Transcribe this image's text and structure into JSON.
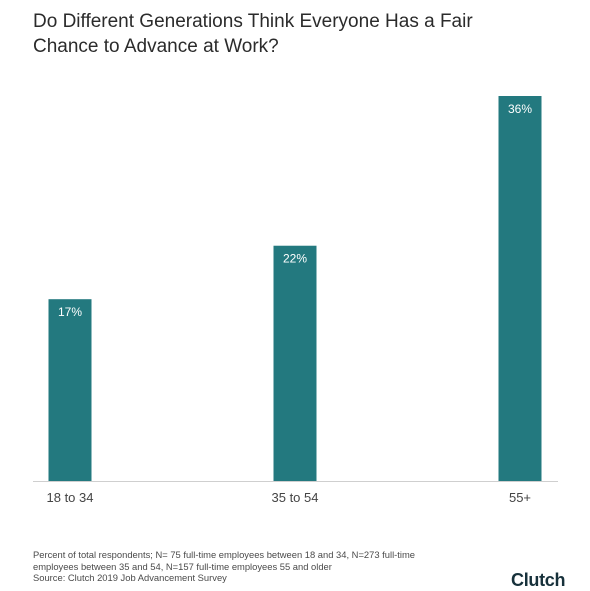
{
  "title_lines": [
    "Do Different Generations Think Everyone Has a Fair",
    "Chance to Advance at Work?"
  ],
  "chart_data": {
    "type": "bar",
    "categories": [
      "18 to 34",
      "35 to 54",
      "55+"
    ],
    "values": [
      17,
      22,
      36
    ],
    "value_labels": [
      "17%",
      "22%",
      "36%"
    ],
    "title": "Do Different Generations Think Everyone Has a Fair Chance to Advance at Work?",
    "xlabel": "",
    "ylabel": "",
    "ylim": [
      0,
      36
    ],
    "grid": false,
    "legend": "none",
    "bar_color": "#23797f",
    "label_color": "#ffffff"
  },
  "footnote_lines": [
    "Percent of total respondents; N= 75 full-time employees between 18 and 34, N=273 full-time",
    "employees between 35 and 54, N=157 full-time employees 55 and older",
    "Source: Clutch 2019 Job Advancement Survey"
  ],
  "logo_text": "Clutch"
}
